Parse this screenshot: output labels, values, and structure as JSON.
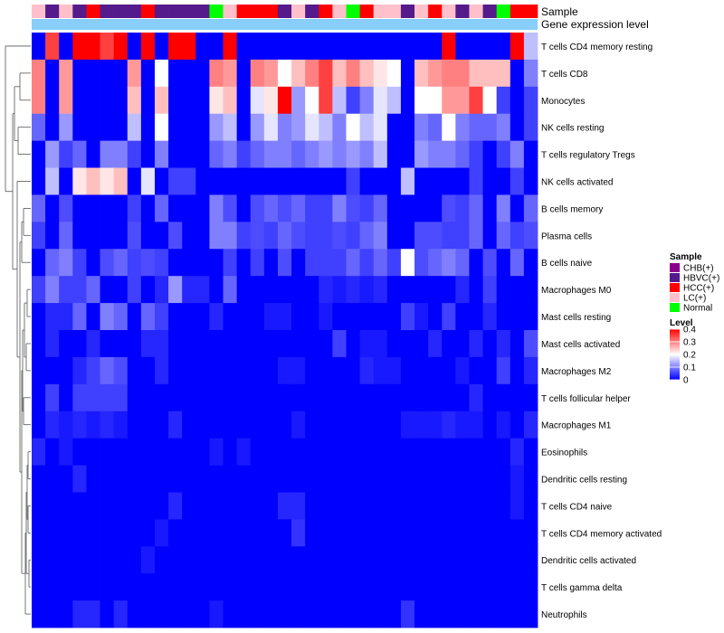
{
  "chart_data": {
    "type": "heatmap",
    "title": "",
    "annotation_tracks": [
      "Sample",
      "Gene expression level"
    ],
    "gene_expression_color": "#87CEFA",
    "rows": [
      "T cells CD4 memory resting",
      "T cells CD8",
      "Monocytes",
      "NK cells resting",
      "T cells regulatory  Tregs",
      "NK cells activated",
      "B cells memory",
      "Plasma cells",
      "B cells naive",
      "Macrophages M0",
      "Mast cells resting",
      "Mast cells activated",
      "Macrophages M2",
      "T cells follicular helper",
      "Macrophages M1",
      "Eosinophils",
      "Dendritic cells resting",
      "T cells CD4 naive",
      "T cells CD4 memory activated",
      "Dendritic cells activated",
      "T cells gamma delta",
      "Neutrophils"
    ],
    "sample_groups": [
      "LC",
      "HBVC",
      "LC",
      "HBVC",
      "HCC",
      "HBVC",
      "HBVC",
      "HBVC",
      "HCC",
      "HBVC",
      "HBVC",
      "HBVC",
      "HBVC",
      "Normal",
      "LC",
      "HCC",
      "HCC",
      "HCC",
      "HBVC",
      "LC",
      "HBVC",
      "HCC",
      "LC",
      "Normal",
      "HCC",
      "LC",
      "LC",
      "HBVC",
      "LC",
      "HCC",
      "LC",
      "HBVC",
      "LC",
      "HBVC",
      "Normal",
      "HCC",
      "HCC"
    ],
    "legend_sample": {
      "title": "Sample",
      "items": [
        {
          "key": "CHB",
          "label": "CHB(+)",
          "color": "#8B008B"
        },
        {
          "key": "HBVC",
          "label": "HBVC(+)",
          "color": "#551A8B"
        },
        {
          "key": "HCC",
          "label": "HCC(+)",
          "color": "#FF0000"
        },
        {
          "key": "LC",
          "label": "LC(+)",
          "color": "#FFC0CB"
        },
        {
          "key": "Normal",
          "label": "Normal",
          "color": "#00FF00"
        }
      ]
    },
    "legend_level": {
      "title": "Level",
      "ticks": [
        "0.4",
        "0.3",
        "0.2",
        "0.1",
        "0"
      ],
      "range": [
        0,
        0.4
      ],
      "color_low": "#0000FF",
      "color_mid": "#FFFFFF",
      "color_high": "#FF0000"
    },
    "values": [
      [
        0.0,
        0.35,
        0.0,
        0.4,
        0.4,
        0.35,
        0.4,
        0.0,
        0.4,
        0.0,
        0.4,
        0.4,
        0.0,
        0.0,
        0.4,
        0.0,
        0.0,
        0.0,
        0.0,
        0.0,
        0.0,
        0.0,
        0.0,
        0.0,
        0.0,
        0.0,
        0.0,
        0.0,
        0.0,
        0.0,
        0.4,
        0.0,
        0.0,
        0.0,
        0.0,
        0.4,
        0.15
      ],
      [
        0.3,
        0.0,
        0.28,
        0.0,
        0.0,
        0.0,
        0.0,
        0.28,
        0.0,
        0.2,
        0.0,
        0.0,
        0.0,
        0.3,
        0.28,
        0.0,
        0.3,
        0.28,
        0.2,
        0.25,
        0.3,
        0.35,
        0.25,
        0.3,
        0.25,
        0.22,
        0.2,
        0.0,
        0.25,
        0.28,
        0.3,
        0.3,
        0.25,
        0.25,
        0.25,
        0.0,
        0.1
      ],
      [
        0.3,
        0.0,
        0.28,
        0.0,
        0.0,
        0.0,
        0.0,
        0.25,
        0.0,
        0.25,
        0.0,
        0.0,
        0.0,
        0.22,
        0.25,
        0.0,
        0.18,
        0.22,
        0.4,
        0.12,
        0.2,
        0.35,
        0.15,
        0.05,
        0.1,
        0.18,
        0.15,
        0.0,
        0.2,
        0.2,
        0.28,
        0.28,
        0.35,
        0.2,
        0.05,
        0.0,
        0.05
      ],
      [
        0.08,
        0.0,
        0.12,
        0.0,
        0.0,
        0.0,
        0.0,
        0.15,
        0.0,
        0.2,
        0.0,
        0.0,
        0.0,
        0.12,
        0.15,
        0.0,
        0.12,
        0.18,
        0.1,
        0.12,
        0.18,
        0.15,
        0.1,
        0.2,
        0.15,
        0.18,
        0.0,
        0.0,
        0.1,
        0.08,
        0.2,
        0.1,
        0.08,
        0.08,
        0.1,
        0.0,
        0.05
      ],
      [
        0.0,
        0.12,
        0.05,
        0.08,
        0.0,
        0.1,
        0.1,
        0.05,
        0.0,
        0.1,
        0.0,
        0.0,
        0.0,
        0.08,
        0.1,
        0.05,
        0.08,
        0.1,
        0.1,
        0.08,
        0.1,
        0.12,
        0.1,
        0.12,
        0.1,
        0.15,
        0.0,
        0.0,
        0.12,
        0.1,
        0.1,
        0.08,
        0.05,
        0.0,
        0.05,
        0.1,
        0.0
      ],
      [
        0.0,
        0.15,
        0.0,
        0.22,
        0.25,
        0.22,
        0.25,
        0.0,
        0.18,
        0.0,
        0.05,
        0.05,
        0.0,
        0.0,
        0.0,
        0.0,
        0.0,
        0.0,
        0.0,
        0.0,
        0.0,
        0.0,
        0.0,
        0.05,
        0.0,
        0.0,
        0.0,
        0.15,
        0.0,
        0.0,
        0.0,
        0.0,
        0.05,
        0.0,
        0.0,
        0.05,
        0.0
      ],
      [
        0.08,
        0.0,
        0.06,
        0.0,
        0.0,
        0.0,
        0.0,
        0.05,
        0.0,
        0.08,
        0.0,
        0.0,
        0.0,
        0.1,
        0.06,
        0.0,
        0.06,
        0.08,
        0.06,
        0.08,
        0.05,
        0.05,
        0.1,
        0.06,
        0.05,
        0.08,
        0.0,
        0.0,
        0.0,
        0.0,
        0.06,
        0.05,
        0.08,
        0.0,
        0.1,
        0.0,
        0.08
      ],
      [
        0.05,
        0.0,
        0.08,
        0.0,
        0.0,
        0.0,
        0.0,
        0.06,
        0.0,
        0.0,
        0.06,
        0.0,
        0.0,
        0.1,
        0.1,
        0.05,
        0.06,
        0.05,
        0.08,
        0.06,
        0.05,
        0.05,
        0.06,
        0.05,
        0.08,
        0.1,
        0.0,
        0.0,
        0.06,
        0.06,
        0.05,
        0.05,
        0.08,
        0.0,
        0.08,
        0.05,
        0.06
      ],
      [
        0.0,
        0.08,
        0.1,
        0.05,
        0.0,
        0.06,
        0.08,
        0.05,
        0.06,
        0.05,
        0.0,
        0.0,
        0.0,
        0.0,
        0.05,
        0.0,
        0.05,
        0.0,
        0.06,
        0.0,
        0.05,
        0.05,
        0.05,
        0.08,
        0.05,
        0.08,
        0.05,
        0.2,
        0.06,
        0.08,
        0.1,
        0.08,
        0.0,
        0.06,
        0.0,
        0.08,
        0.0
      ],
      [
        0.05,
        0.1,
        0.05,
        0.05,
        0.08,
        0.0,
        0.0,
        0.05,
        0.0,
        0.03,
        0.12,
        0.03,
        0.03,
        0.0,
        0.08,
        0.0,
        0.0,
        0.0,
        0.0,
        0.0,
        0.0,
        0.03,
        0.02,
        0.03,
        0.02,
        0.03,
        0.0,
        0.0,
        0.0,
        0.0,
        0.0,
        0.03,
        0.0,
        0.05,
        0.0,
        0.0,
        0.0
      ],
      [
        0.0,
        0.03,
        0.03,
        0.08,
        0.0,
        0.1,
        0.08,
        0.0,
        0.08,
        0.05,
        0.0,
        0.0,
        0.0,
        0.03,
        0.0,
        0.0,
        0.0,
        0.02,
        0.02,
        0.0,
        0.0,
        0.02,
        0.0,
        0.0,
        0.0,
        0.0,
        0.0,
        0.05,
        0.02,
        0.0,
        0.05,
        0.0,
        0.0,
        0.03,
        0.0,
        0.0,
        0.0
      ],
      [
        0.0,
        0.03,
        0.0,
        0.0,
        0.03,
        0.0,
        0.0,
        0.0,
        0.03,
        0.03,
        0.0,
        0.0,
        0.0,
        0.0,
        0.0,
        0.0,
        0.0,
        0.0,
        0.0,
        0.0,
        0.0,
        0.0,
        0.05,
        0.0,
        0.02,
        0.02,
        0.0,
        0.0,
        0.0,
        0.03,
        0.0,
        0.0,
        0.03,
        0.0,
        0.03,
        0.0,
        0.06
      ],
      [
        0.0,
        0.0,
        0.0,
        0.03,
        0.05,
        0.08,
        0.06,
        0.0,
        0.0,
        0.03,
        0.0,
        0.0,
        0.0,
        0.0,
        0.0,
        0.0,
        0.0,
        0.0,
        0.02,
        0.02,
        0.0,
        0.0,
        0.0,
        0.0,
        0.03,
        0.02,
        0.02,
        0.0,
        0.0,
        0.0,
        0.0,
        0.02,
        0.0,
        0.0,
        0.05,
        0.0,
        0.03
      ],
      [
        0.0,
        0.05,
        0.0,
        0.05,
        0.05,
        0.05,
        0.05,
        0.0,
        0.0,
        0.0,
        0.0,
        0.0,
        0.0,
        0.0,
        0.0,
        0.0,
        0.0,
        0.0,
        0.0,
        0.0,
        0.0,
        0.0,
        0.0,
        0.0,
        0.0,
        0.0,
        0.0,
        0.0,
        0.0,
        0.0,
        0.0,
        0.0,
        0.03,
        0.0,
        0.0,
        0.0,
        0.0
      ],
      [
        0.0,
        0.03,
        0.02,
        0.03,
        0.02,
        0.03,
        0.02,
        0.0,
        0.0,
        0.0,
        0.03,
        0.0,
        0.0,
        0.0,
        0.0,
        0.0,
        0.0,
        0.0,
        0.0,
        0.02,
        0.0,
        0.0,
        0.0,
        0.0,
        0.0,
        0.0,
        0.0,
        0.02,
        0.02,
        0.02,
        0.03,
        0.02,
        0.02,
        0.0,
        0.02,
        0.0,
        0.03
      ],
      [
        0.03,
        0.0,
        0.02,
        0.0,
        0.0,
        0.0,
        0.0,
        0.0,
        0.0,
        0.0,
        0.0,
        0.0,
        0.0,
        0.02,
        0.0,
        0.02,
        0.0,
        0.0,
        0.0,
        0.0,
        0.0,
        0.0,
        0.0,
        0.0,
        0.0,
        0.0,
        0.0,
        0.0,
        0.0,
        0.0,
        0.0,
        0.0,
        0.0,
        0.0,
        0.0,
        0.03,
        0.0
      ],
      [
        0.0,
        0.0,
        0.0,
        0.03,
        0.0,
        0.0,
        0.0,
        0.0,
        0.0,
        0.0,
        0.0,
        0.0,
        0.0,
        0.0,
        0.0,
        0.0,
        0.0,
        0.0,
        0.0,
        0.0,
        0.0,
        0.0,
        0.0,
        0.0,
        0.0,
        0.0,
        0.0,
        0.0,
        0.0,
        0.0,
        0.0,
        0.0,
        0.0,
        0.0,
        0.0,
        0.02,
        0.0
      ],
      [
        0.0,
        0.0,
        0.0,
        0.0,
        0.0,
        0.0,
        0.0,
        0.0,
        0.0,
        0.0,
        0.03,
        0.0,
        0.0,
        0.0,
        0.0,
        0.0,
        0.0,
        0.0,
        0.03,
        0.03,
        0.0,
        0.0,
        0.0,
        0.0,
        0.0,
        0.0,
        0.0,
        0.0,
        0.0,
        0.0,
        0.0,
        0.0,
        0.0,
        0.0,
        0.0,
        0.02,
        0.0
      ],
      [
        0.0,
        0.0,
        0.0,
        0.0,
        0.0,
        0.0,
        0.0,
        0.0,
        0.0,
        0.02,
        0.0,
        0.0,
        0.0,
        0.0,
        0.0,
        0.0,
        0.0,
        0.0,
        0.0,
        0.04,
        0.0,
        0.0,
        0.0,
        0.0,
        0.0,
        0.0,
        0.0,
        0.0,
        0.0,
        0.0,
        0.0,
        0.0,
        0.0,
        0.0,
        0.0,
        0.0,
        0.0
      ],
      [
        0.0,
        0.0,
        0.0,
        0.0,
        0.0,
        0.0,
        0.0,
        0.0,
        0.02,
        0.0,
        0.0,
        0.0,
        0.0,
        0.0,
        0.0,
        0.0,
        0.0,
        0.0,
        0.0,
        0.0,
        0.0,
        0.0,
        0.0,
        0.0,
        0.0,
        0.0,
        0.0,
        0.0,
        0.0,
        0.0,
        0.0,
        0.0,
        0.0,
        0.0,
        0.0,
        0.0,
        0.0
      ],
      [
        0.0,
        0.0,
        0.0,
        0.0,
        0.0,
        0.0,
        0.0,
        0.0,
        0.0,
        0.0,
        0.0,
        0.0,
        0.0,
        0.0,
        0.0,
        0.0,
        0.0,
        0.0,
        0.0,
        0.0,
        0.0,
        0.0,
        0.0,
        0.0,
        0.0,
        0.0,
        0.0,
        0.0,
        0.0,
        0.0,
        0.0,
        0.0,
        0.0,
        0.0,
        0.0,
        0.0,
        0.0
      ],
      [
        0.0,
        0.0,
        0.0,
        0.03,
        0.03,
        0.0,
        0.03,
        0.0,
        0.0,
        0.0,
        0.0,
        0.0,
        0.0,
        0.02,
        0.0,
        0.0,
        0.0,
        0.0,
        0.0,
        0.0,
        0.0,
        0.0,
        0.0,
        0.0,
        0.0,
        0.0,
        0.0,
        0.04,
        0.0,
        0.0,
        0.0,
        0.0,
        0.0,
        0.0,
        0.0,
        0.0,
        0.0
      ]
    ]
  }
}
